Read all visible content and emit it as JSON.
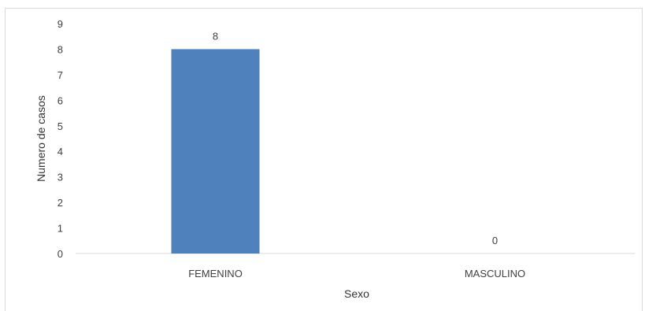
{
  "chart_data": {
    "type": "bar",
    "title": "",
    "xlabel": "Sexo",
    "ylabel": "Numero de casos",
    "categories": [
      "FEMENINO",
      "MASCULINO"
    ],
    "values": [
      8,
      0
    ],
    "data_labels": [
      "8",
      "0"
    ],
    "ylim": [
      0,
      9
    ],
    "yticks": [
      "0",
      "1",
      "2",
      "3",
      "4",
      "5",
      "6",
      "7",
      "8",
      "9"
    ],
    "grid": false,
    "legend": "none",
    "bar_color": "#4f81bd"
  }
}
